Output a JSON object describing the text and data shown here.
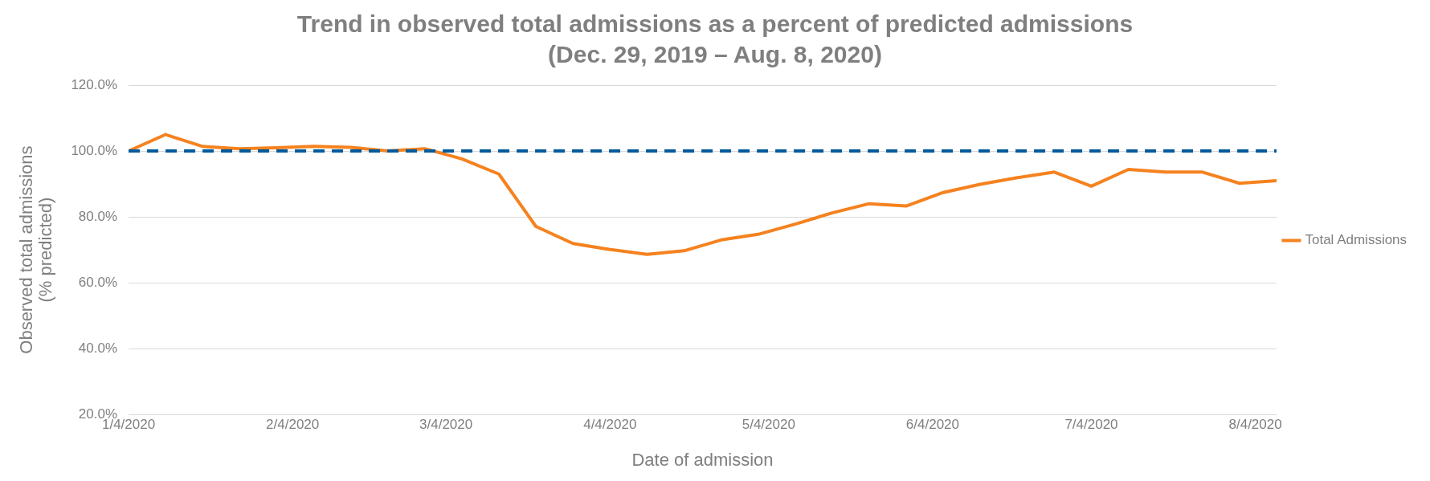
{
  "chart_data": {
    "type": "line",
    "title": "Trend in observed total admissions as a percent of predicted admissions",
    "subtitle": "(Dec. 29, 2019 – Aug. 8, 2020)",
    "xlabel": "Date of admission",
    "ylabel": "Observed total admissions\n(% predicted)",
    "x": [
      "2020-01-04",
      "2020-01-11",
      "2020-01-18",
      "2020-01-25",
      "2020-02-01",
      "2020-02-08",
      "2020-02-15",
      "2020-02-22",
      "2020-02-29",
      "2020-03-07",
      "2020-03-14",
      "2020-03-21",
      "2020-03-28",
      "2020-04-04",
      "2020-04-11",
      "2020-04-18",
      "2020-04-25",
      "2020-05-02",
      "2020-05-09",
      "2020-05-16",
      "2020-05-23",
      "2020-05-30",
      "2020-06-06",
      "2020-06-13",
      "2020-06-20",
      "2020-06-27",
      "2020-07-04",
      "2020-07-11",
      "2020-07-18",
      "2020-07-25",
      "2020-08-01",
      "2020-08-08"
    ],
    "series": [
      {
        "name": "Total Admissions",
        "color": "#f5821f",
        "values": [
          100,
          105,
          101.4,
          100.7,
          101,
          101.4,
          101.1,
          100,
          100.7,
          97.6,
          93,
          77.1,
          71.9,
          70.1,
          68.6,
          69.7,
          73,
          74.7,
          77.8,
          81.2,
          84,
          83.3,
          87.4,
          89.9,
          91.9,
          93.6,
          89.3,
          94.4,
          93.6,
          93.6,
          90.2,
          91
        ]
      }
    ],
    "xlim": [
      "2020-01-04",
      "2020-08-08"
    ],
    "xticks": [
      {
        "value": "2020-01-04",
        "label": "1/4/2020"
      },
      {
        "value": "2020-02-04",
        "label": "2/4/2020"
      },
      {
        "value": "2020-03-04",
        "label": "3/4/2020"
      },
      {
        "value": "2020-04-04",
        "label": "4/4/2020"
      },
      {
        "value": "2020-05-04",
        "label": "5/4/2020"
      },
      {
        "value": "2020-06-04",
        "label": "6/4/2020"
      },
      {
        "value": "2020-07-04",
        "label": "7/4/2020"
      },
      {
        "value": "2020-08-04",
        "label": "8/4/2020"
      }
    ],
    "ylim": [
      20,
      120
    ],
    "yticks": [
      {
        "value": 20,
        "label": "20.0%"
      },
      {
        "value": 40,
        "label": "40.0%"
      },
      {
        "value": 60,
        "label": "60.0%"
      },
      {
        "value": 80,
        "label": "80.0%"
      },
      {
        "value": 100,
        "label": "100.0%"
      },
      {
        "value": 120,
        "label": "120.0%"
      }
    ],
    "ref_lines": [
      {
        "axis": "y",
        "value": 100,
        "color": "#005a9c",
        "line_style": "dashed"
      }
    ],
    "grid": "y",
    "legend": "right",
    "marker": "none",
    "line_style": "solid"
  }
}
